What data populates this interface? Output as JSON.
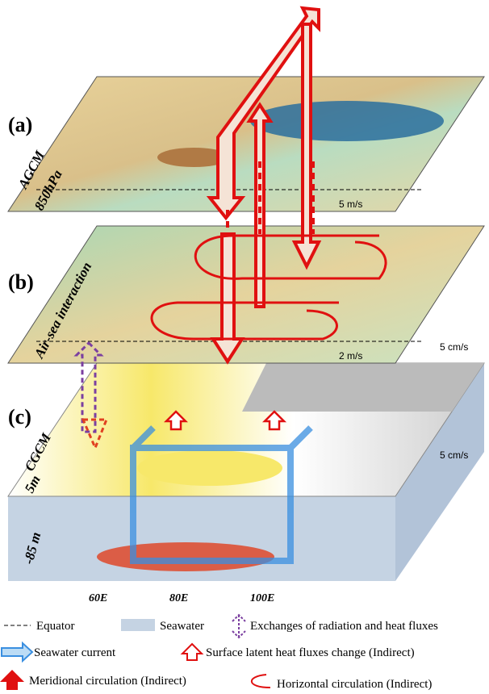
{
  "panels": [
    {
      "label": "(a)",
      "model": "AGCM",
      "level": "850hPa",
      "scale": "5 m/s"
    },
    {
      "label": "(b)",
      "model": "Air-sea interaction",
      "scale": "2 m/s",
      "scale_ocean": "5 cm/s"
    },
    {
      "label": "(c)",
      "model": "CGCM",
      "level": "5m",
      "level_deep": "-85 m",
      "scale": "5 cm/s"
    }
  ],
  "x_axis": [
    "60E",
    "80E",
    "100E"
  ],
  "legend": [
    "Equator",
    "Seawater",
    "Exchanges of radiation and heat fluxes",
    "Seawater current",
    "Surface latent heat fluxes change (Indirect)",
    "Meridional circulation (Indirect)",
    "Horizontal circulation (Indirect)"
  ]
}
